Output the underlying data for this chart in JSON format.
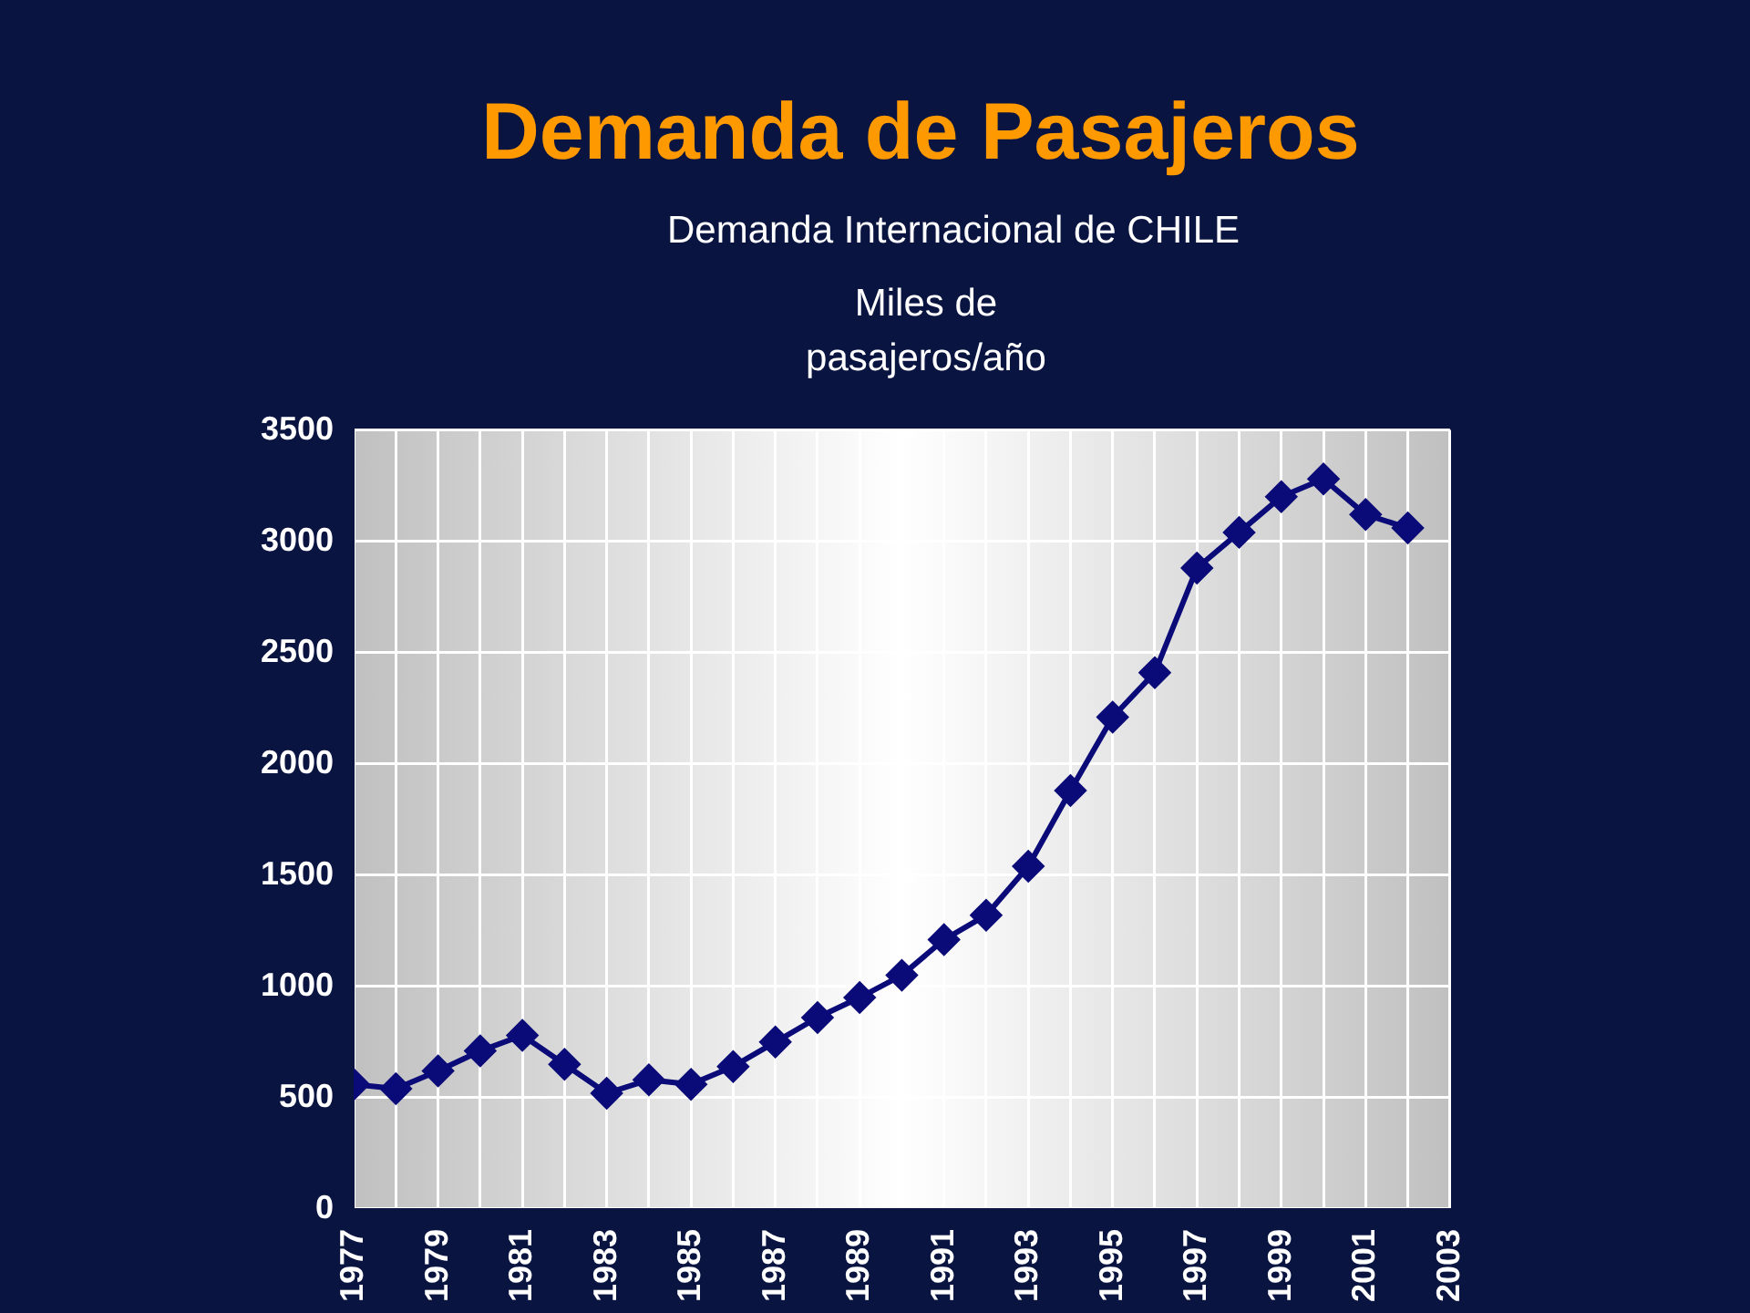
{
  "chart_data": {
    "type": "line",
    "title": "Demanda de Pasajeros",
    "subtitle": "Demanda Internacional de CHILE",
    "ylabel": "Miles de pasajeros/año",
    "x": [
      1977,
      1978,
      1979,
      1980,
      1981,
      1982,
      1983,
      1984,
      1985,
      1986,
      1987,
      1988,
      1989,
      1990,
      1991,
      1992,
      1993,
      1994,
      1995,
      1996,
      1997,
      1998,
      1999,
      2000,
      2001,
      2002
    ],
    "series": [
      {
        "color": "#0a0a78",
        "values": [
          560,
          540,
          620,
          710,
          780,
          650,
          520,
          580,
          560,
          640,
          750,
          860,
          950,
          1050,
          1210,
          1320,
          1540,
          1880,
          2210,
          2410,
          2880,
          3040,
          3200,
          3280,
          3120,
          3060
        ]
      }
    ],
    "xlim": [
      1977,
      2003
    ],
    "xticks": [
      1977,
      {
        "value": 1978,
        "label": null
      },
      1979,
      {
        "value": 1980,
        "label": null
      },
      1981,
      {
        "value": 1982,
        "label": null
      },
      1983,
      {
        "value": 1984,
        "label": null
      },
      1985,
      {
        "value": 1986,
        "label": null
      },
      1987,
      {
        "value": 1988,
        "label": null
      },
      1989,
      {
        "value": 1990,
        "label": null
      },
      1991,
      {
        "value": 1992,
        "label": null
      },
      1993,
      {
        "value": 1994,
        "label": null
      },
      1995,
      {
        "value": 1996,
        "label": null
      },
      1997,
      {
        "value": 1998,
        "label": null
      },
      1999,
      {
        "value": 2000,
        "label": null
      },
      2001,
      {
        "value": 2002,
        "label": null
      },
      2003
    ],
    "ylim": [
      0,
      3500
    ],
    "yticks": [
      0,
      500,
      1000,
      1500,
      2000,
      2500,
      3000,
      3500
    ],
    "grid": true,
    "legend": false,
    "marker": "diamond",
    "line_style": "solid"
  }
}
